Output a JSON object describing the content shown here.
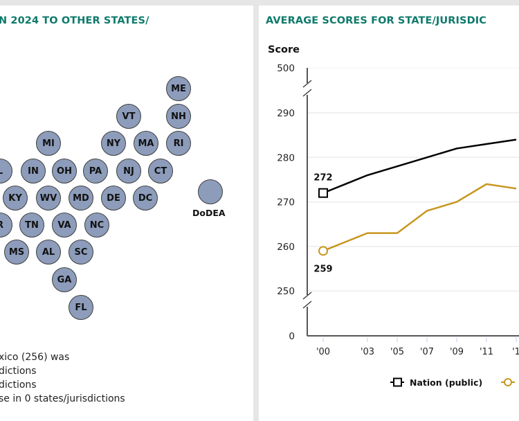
{
  "left_panel": {
    "title": "N 2024 TO OTHER STATES/",
    "states": [
      {
        "abbr": "ME"
      },
      {
        "abbr": "VT"
      },
      {
        "abbr": "NH"
      },
      {
        "abbr": "MI"
      },
      {
        "abbr": "NY"
      },
      {
        "abbr": "MA"
      },
      {
        "abbr": "RI"
      },
      {
        "abbr": "L"
      },
      {
        "abbr": "IN"
      },
      {
        "abbr": "OH"
      },
      {
        "abbr": "PA"
      },
      {
        "abbr": "NJ"
      },
      {
        "abbr": "CT"
      },
      {
        "abbr": "KY"
      },
      {
        "abbr": "WV"
      },
      {
        "abbr": "MD"
      },
      {
        "abbr": "DE"
      },
      {
        "abbr": "DC"
      },
      {
        "abbr": "R"
      },
      {
        "abbr": "TN"
      },
      {
        "abbr": "VA"
      },
      {
        "abbr": "NC"
      },
      {
        "abbr": "MS"
      },
      {
        "abbr": "AL"
      },
      {
        "abbr": "SC"
      },
      {
        "abbr": "GA"
      },
      {
        "abbr": "FL"
      }
    ],
    "dodea_label": "DoDEA",
    "bubble_color": "#8c9cba",
    "notes": [
      "xico (256) was",
      "dictions",
      "dictions",
      "se in 0 states/jurisdictions"
    ]
  },
  "right_panel": {
    "title": "AVERAGE SCORES FOR STATE/JURISDIC"
  },
  "chart_data": {
    "type": "line",
    "title": "AVERAGE SCORES FOR STATE/JURISDIC",
    "ylabel": "Score",
    "xlabel": "",
    "x": [
      "'00",
      "'03",
      "'05",
      "'07",
      "'09",
      "'11",
      "'1"
    ],
    "yticks": [
      "500",
      "290",
      "280",
      "270",
      "260",
      "250",
      "0"
    ],
    "ylim": [
      250,
      290
    ],
    "axis_breaks": true,
    "grid": true,
    "series": [
      {
        "name": "Nation (public)",
        "color": "#000000",
        "marker": "square",
        "values": [
          272,
          276,
          278,
          280,
          282,
          283,
          284
        ]
      },
      {
        "name": "",
        "color": "#c8961e",
        "marker": "circle",
        "values": [
          259,
          263,
          263,
          268,
          270,
          274,
          273
        ]
      }
    ],
    "annotations": [
      {
        "series": 0,
        "index": 0,
        "text": "272"
      },
      {
        "series": 1,
        "index": 0,
        "text": "259"
      }
    ],
    "legend": {
      "placement": "bottom",
      "entries": [
        "Nation (public)",
        ""
      ]
    }
  }
}
